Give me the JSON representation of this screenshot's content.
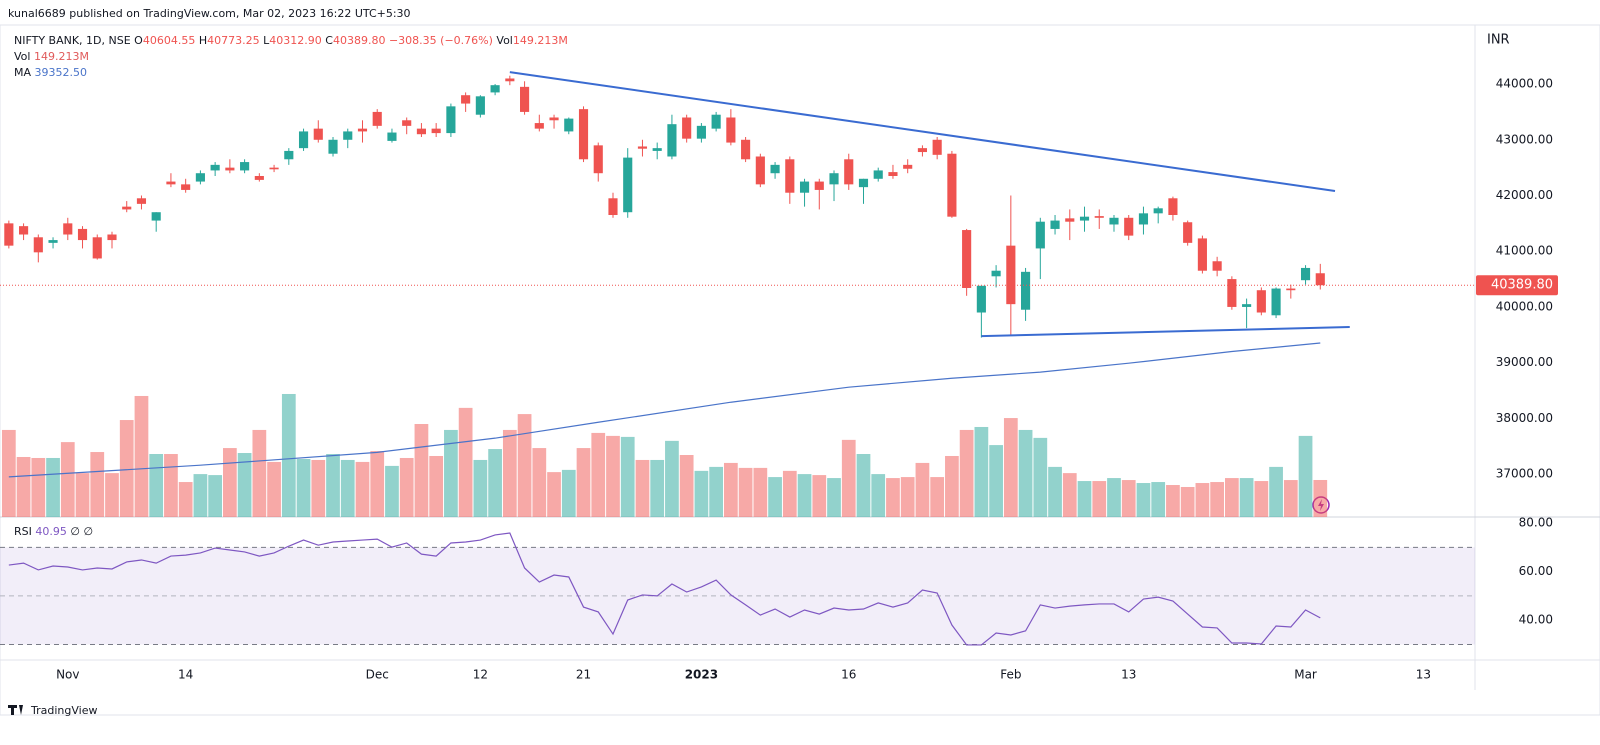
{
  "header": {
    "published": "kunal6689 published on TradingView.com, Mar 02, 2023 16:22 UTC+5:30"
  },
  "footer": {
    "brand": "TradingView"
  },
  "chart_data": {
    "type": "candlestick",
    "legend": {
      "symbol": "NIFTY BANK, 1D, NSE",
      "fields": [
        {
          "key": "O",
          "value": "40604.55"
        },
        {
          "key": "H",
          "value": "40773.25"
        },
        {
          "key": "L",
          "value": "40312.90"
        },
        {
          "key": "C",
          "value": "40389.80"
        },
        {
          "key": "",
          "value": "−308.35 (−0.76%)"
        },
        {
          "key": "Vol",
          "value": "149.213M"
        }
      ]
    },
    "currency": "INR",
    "last_price_label": "40389.80",
    "up_color": "#26a69a",
    "down_color": "#ef5350",
    "xlim": [
      -0.6,
      99.5
    ],
    "xticks": [
      {
        "value": 4,
        "label": "Nov"
      },
      {
        "value": 12,
        "label": "14"
      },
      {
        "value": 25,
        "label": "Dec"
      },
      {
        "value": 32,
        "label": "12"
      },
      {
        "value": 39,
        "label": "21"
      },
      {
        "value": 47,
        "label": "2023"
      },
      {
        "value": 57,
        "label": "16"
      },
      {
        "value": 68,
        "label": "Feb"
      },
      {
        "value": 76,
        "label": "13"
      },
      {
        "value": 88,
        "label": "Mar"
      },
      {
        "value": 96,
        "label": "13"
      }
    ],
    "ylim": [
      36230,
      45060
    ],
    "yticks": [
      {
        "value": 37000,
        "label": "37000.00"
      },
      {
        "value": 38000,
        "label": "38000.00"
      },
      {
        "value": 39000,
        "label": "39000.00"
      },
      {
        "value": 40000,
        "label": "40000.00"
      },
      {
        "value": 41000,
        "label": "41000.00"
      },
      {
        "value": 42000,
        "label": "42000.00"
      },
      {
        "value": 43000,
        "label": "43000.00"
      },
      {
        "value": 44000,
        "label": "44000.00"
      }
    ],
    "open": [
      41500,
      41450,
      41250,
      41150,
      41500,
      41400,
      41250,
      41300,
      41800,
      41950,
      41550,
      42250,
      42200,
      42250,
      42450,
      42500,
      42450,
      42350,
      42500,
      42650,
      42850,
      43200,
      42750,
      43000,
      43200,
      43500,
      42980,
      43350,
      43200,
      43200,
      43120,
      43800,
      43450,
      43850,
      44100,
      43950,
      43300,
      43400,
      43150,
      43550,
      42900,
      41950,
      41700,
      42880,
      42800,
      42700,
      43400,
      43020,
      43200,
      43400,
      43000,
      42700,
      42400,
      42650,
      42050,
      42250,
      42200,
      42650,
      42150,
      42300,
      42420,
      42550,
      42850,
      43000,
      42750,
      41380,
      39900,
      40550,
      41100,
      39950,
      41050,
      41400,
      41590,
      41550,
      41630,
      41480,
      41600,
      41480,
      41680,
      41950,
      41520,
      41230,
      40820,
      40500,
      40000,
      40300,
      39850,
      40330,
      40480,
      40604.55
    ],
    "high": [
      41550,
      41500,
      41300,
      41250,
      41600,
      41450,
      41300,
      41350,
      41900,
      42000,
      41700,
      42400,
      42300,
      42450,
      42600,
      42650,
      42650,
      42400,
      42550,
      42850,
      43200,
      43350,
      43050,
      43200,
      43350,
      43550,
      43200,
      43400,
      43300,
      43300,
      43650,
      43850,
      43800,
      44000,
      44150,
      44050,
      43450,
      43450,
      43400,
      43600,
      42950,
      42050,
      42850,
      43000,
      42950,
      43450,
      43450,
      43300,
      43500,
      43550,
      43050,
      42750,
      42600,
      42700,
      42300,
      42300,
      42450,
      42750,
      42300,
      42500,
      42550,
      42650,
      42900,
      43050,
      42800,
      41400,
      40350,
      40750,
      42000,
      40700,
      41600,
      41650,
      41750,
      41800,
      41750,
      41650,
      41650,
      41800,
      41800,
      41980,
      41550,
      41280,
      40900,
      40550,
      40150,
      40350,
      40350,
      40400,
      40750,
      40773.25
    ],
    "low": [
      41050,
      41200,
      40800,
      41050,
      41200,
      41050,
      40850,
      41050,
      41700,
      41750,
      41350,
      42150,
      42050,
      42200,
      42350,
      42400,
      42400,
      42250,
      42420,
      42550,
      42800,
      42950,
      42700,
      42850,
      42950,
      43200,
      42950,
      43100,
      43050,
      43050,
      43050,
      43500,
      43400,
      43800,
      43980,
      43450,
      43150,
      43200,
      43100,
      42600,
      42250,
      41600,
      41600,
      42700,
      42650,
      42650,
      42950,
      42950,
      43150,
      42900,
      42600,
      42150,
      42300,
      41850,
      41800,
      41750,
      41900,
      42100,
      41850,
      42250,
      42300,
      42400,
      42700,
      42650,
      41600,
      40200,
      39450,
      40350,
      39500,
      39750,
      40500,
      41300,
      41200,
      41350,
      41400,
      41350,
      41200,
      41300,
      41500,
      41550,
      41100,
      40600,
      40550,
      39950,
      39620,
      39850,
      39800,
      40150,
      40400,
      40312.9
    ],
    "close": [
      41100,
      41300,
      40980,
      41200,
      41300,
      41200,
      40870,
      41200,
      41750,
      41850,
      41700,
      42200,
      42100,
      42400,
      42550,
      42450,
      42600,
      42280,
      42470,
      42800,
      43150,
      43000,
      43000,
      43150,
      43150,
      43250,
      43130,
      43250,
      43100,
      43120,
      43600,
      43650,
      43780,
      43980,
      44050,
      43500,
      43200,
      43350,
      43380,
      42650,
      42400,
      41650,
      42680,
      42840,
      42850,
      43280,
      43020,
      43250,
      43450,
      42950,
      42650,
      42200,
      42550,
      42050,
      42250,
      42100,
      42400,
      42200,
      42300,
      42450,
      42350,
      42480,
      42780,
      42730,
      41620,
      40340,
      40380,
      40650,
      40050,
      40630,
      41530,
      41550,
      41530,
      41620,
      41600,
      41600,
      41280,
      41680,
      41770,
      41650,
      41150,
      40650,
      40650,
      40000,
      40050,
      39900,
      40330,
      40300,
      40700,
      40389.8
    ],
    "volume": {
      "name": "Vol",
      "value_label": "149.213M",
      "color": "#e05a5a",
      "values": [
        351,
        242,
        238,
        238,
        302,
        177,
        262,
        177,
        391,
        488,
        254,
        254,
        141,
        173,
        169,
        278,
        258,
        351,
        222,
        496,
        234,
        230,
        254,
        230,
        222,
        266,
        206,
        238,
        375,
        246,
        351,
        440,
        230,
        274,
        351,
        415,
        278,
        181,
        190,
        278,
        339,
        327,
        323,
        230,
        230,
        307,
        250,
        186,
        202,
        218,
        198,
        198,
        161,
        186,
        173,
        169,
        157,
        311,
        254,
        173,
        157,
        161,
        218,
        161,
        246,
        351,
        363,
        290,
        399,
        351,
        319,
        202,
        177,
        145,
        145,
        157,
        149,
        137,
        141,
        129,
        121,
        137,
        141,
        157,
        157,
        145,
        202,
        149,
        327,
        149.213
      ]
    },
    "ma": {
      "name": "MA",
      "value_label": "39352.50",
      "color": "#4a74c9",
      "x": [
        0,
        13,
        25,
        33,
        40,
        49,
        57,
        64,
        70,
        76,
        83,
        89
      ],
      "values": [
        36950,
        37160,
        37390,
        37645,
        37930,
        38290,
        38560,
        38720,
        38830,
        38990,
        39200,
        39352.5
      ]
    },
    "trendlines": [
      {
        "color": "#3a6bd1",
        "x": [
          34,
          90
        ],
        "values": [
          44215,
          42080
        ]
      },
      {
        "color": "#3a6bd1",
        "x": [
          66,
          91
        ],
        "values": [
          39477,
          39640
        ]
      }
    ],
    "rsi": {
      "name": "RSI",
      "value_label": "40.95",
      "extra_labels": [
        "∅",
        "∅"
      ],
      "color": "#7e57c2",
      "ylim": [
        23.6,
        82.5
      ],
      "bands": [
        30,
        70
      ],
      "midline": 50,
      "yticks": [
        {
          "value": 40,
          "label": "40.00"
        },
        {
          "value": 60,
          "label": "60.00"
        },
        {
          "value": 80,
          "label": "80.00"
        }
      ],
      "values": [
        62.7,
        63.5,
        60.7,
        62.3,
        61.9,
        60.7,
        61.5,
        61.1,
        64,
        64.8,
        63.5,
        66.4,
        66.8,
        67.7,
        69.7,
        68.9,
        68.1,
        66.4,
        67.7,
        70.5,
        73,
        70.9,
        72.2,
        72.6,
        73,
        73.4,
        70.1,
        71.8,
        67.2,
        66.4,
        71.8,
        72.2,
        73,
        75.1,
        75.9,
        61.5,
        55.7,
        58.6,
        57.8,
        45.4,
        43.4,
        34.3,
        48.3,
        50.4,
        50,
        54.9,
        51.6,
        53.7,
        56.5,
        50.4,
        46.3,
        42.1,
        44.6,
        41.3,
        44.2,
        42.5,
        45,
        44.2,
        44.6,
        47.1,
        45.4,
        47.1,
        52.4,
        51.2,
        38,
        29.8,
        29.8,
        34.7,
        33.9,
        35.6,
        46.3,
        45,
        45.8,
        46.3,
        46.7,
        46.7,
        43.4,
        48.7,
        49.5,
        47.9,
        42.5,
        37.2,
        36.8,
        30.6,
        30.6,
        30.2,
        37.6,
        37.2,
        44.2,
        40.95
      ]
    }
  }
}
